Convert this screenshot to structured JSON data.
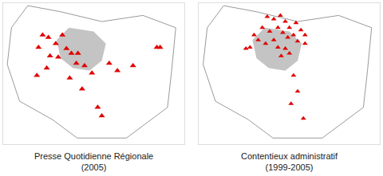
{
  "chart_data": [
    {
      "type": "scatter",
      "title": "Presse Quotidienne Régionale",
      "subtitle": "(2005)",
      "x": [
        1.88,
        1.95,
        2.04,
        2.12,
        1.97,
        2.07,
        2.17,
        2.23,
        2.31,
        2.29,
        2.39,
        2.48,
        1.93,
        1.81,
        2.21,
        2.36,
        2.69,
        2.79,
        2.98,
        3.27,
        3.31,
        2.55,
        2.6,
        1.83
      ],
      "y": [
        48.99,
        48.97,
        48.92,
        48.99,
        48.82,
        48.81,
        48.88,
        48.84,
        48.84,
        48.76,
        48.74,
        48.68,
        48.72,
        48.66,
        48.64,
        48.55,
        48.76,
        48.7,
        48.74,
        48.89,
        48.89,
        48.4,
        48.33,
        48.89
      ],
      "color": "#e00000",
      "marker": "triangle-up",
      "xlim": [
        1.4,
        3.6
      ],
      "ylim": [
        48.1,
        49.25
      ],
      "tick_labels": false,
      "grid": false
    },
    {
      "type": "scatter",
      "title": "Contentieux administratif",
      "subtitle": "(1999-2005)",
      "x": [
        2.23,
        2.31,
        2.39,
        2.45,
        2.5,
        2.58,
        2.64,
        2.69,
        2.17,
        2.26,
        2.36,
        2.42,
        2.48,
        2.55,
        2.6,
        2.31,
        2.21,
        2.12,
        2.02,
        1.97,
        2.36,
        2.45,
        2.4,
        2.5,
        2.07,
        2.69,
        2.55,
        2.6,
        2.52,
        2.67
      ],
      "y": [
        49.14,
        49.12,
        49.15,
        49.1,
        49.05,
        49.09,
        49.03,
        48.99,
        49.05,
        49.02,
        49.05,
        49.01,
        48.97,
        48.99,
        48.94,
        48.95,
        48.92,
        48.95,
        48.89,
        48.88,
        48.89,
        48.88,
        48.82,
        48.84,
        48.99,
        48.92,
        48.66,
        48.53,
        48.43,
        48.31
      ],
      "color": "#e00000",
      "marker": "triangle-up",
      "xlim": [
        1.4,
        3.6
      ],
      "ylim": [
        48.1,
        49.25
      ],
      "tick_labels": false,
      "grid": false
    }
  ]
}
